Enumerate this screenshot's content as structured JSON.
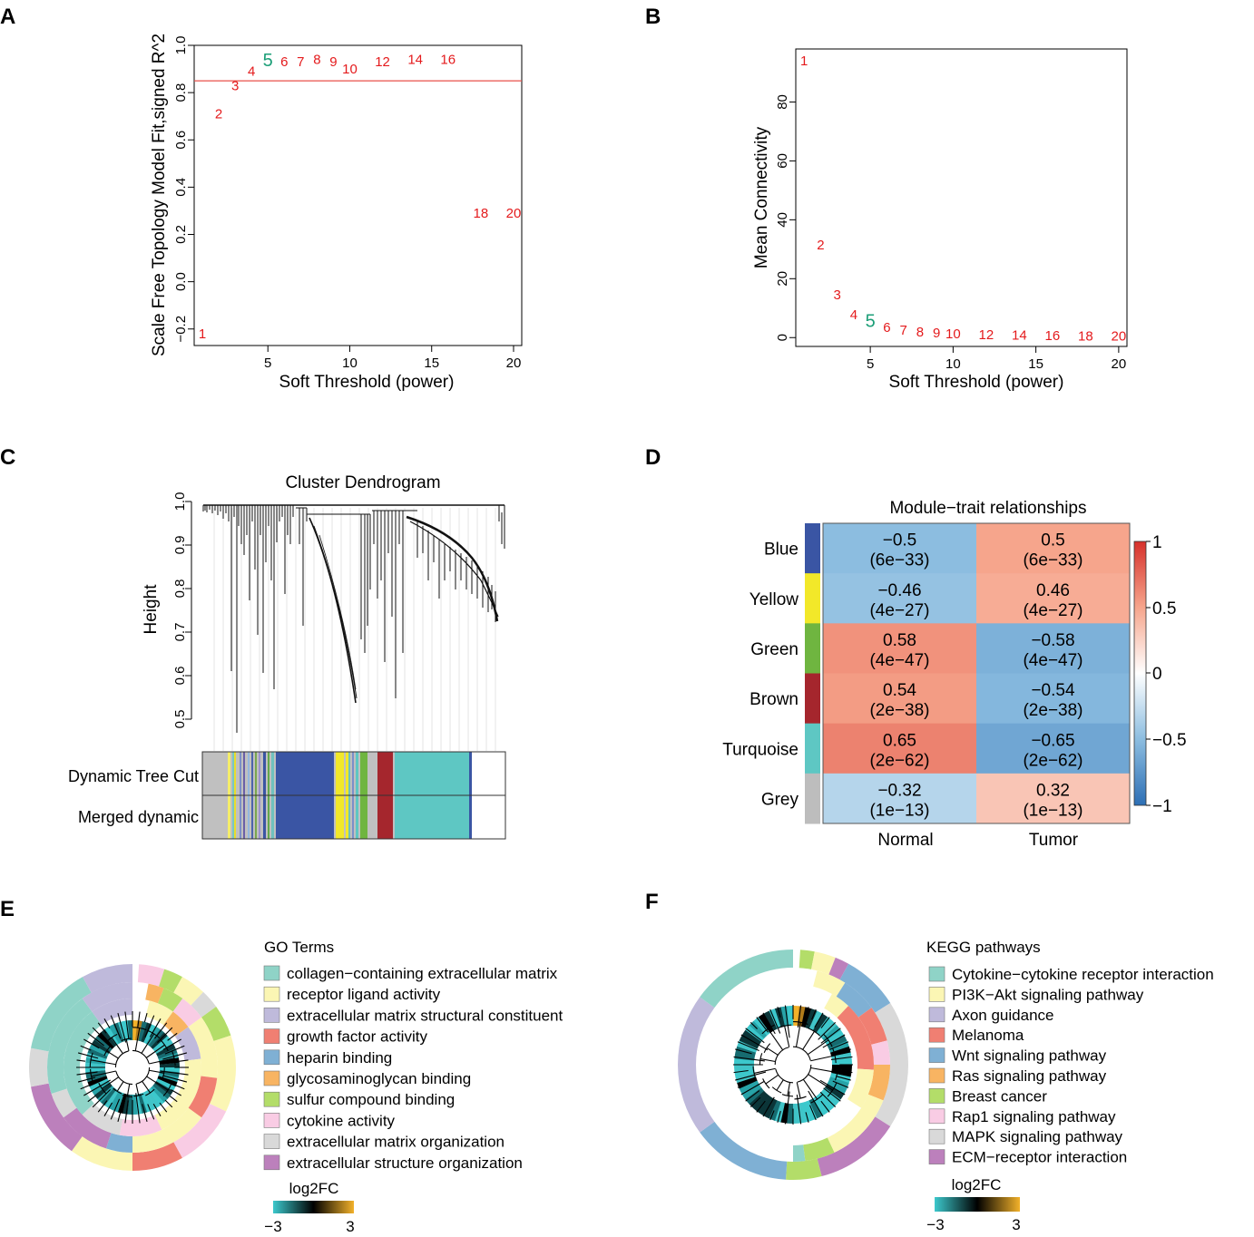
{
  "colors": {
    "point_red": "#e41a1c",
    "point_green": "#1b9e77",
    "cut_line": "#e8504a",
    "blue_module": "#3a55a4",
    "yellow_module": "#f2e829",
    "green_module": "#6fb540",
    "brown_module": "#a5262d",
    "turquoise_module": "#5ec7c3",
    "grey_module": "#bdbdbd"
  },
  "panels": {
    "A": {
      "letter": "A"
    },
    "B": {
      "letter": "B"
    },
    "C": {
      "letter": "C",
      "title": "Cluster Dendrogram",
      "ylabel": "Height",
      "yticks": [
        "0.5",
        "0.6",
        "0.7",
        "0.8",
        "0.9",
        "1.0"
      ],
      "row1": "Dynamic Tree Cut",
      "row2": "Merged dynamic"
    },
    "D": {
      "letter": "D",
      "title": "Module−trait relationships",
      "scale_ticks": [
        "1",
        "0.5",
        "0",
        "−0.5",
        "−1"
      ]
    },
    "E": {
      "letter": "E",
      "legend_title": "GO Terms",
      "scale_title": "log2FC",
      "scale_min": "−3",
      "scale_max": "3",
      "items": [
        {
          "label": "collagen−containing extracellular matrix",
          "color": "#8fd3c7"
        },
        {
          "label": "receptor ligand activity",
          "color": "#fbf6b4"
        },
        {
          "label": "extracellular matrix structural constituent",
          "color": "#bfbadb"
        },
        {
          "label": "growth factor activity",
          "color": "#f07f72"
        },
        {
          "label": "heparin binding",
          "color": "#7fb0d4"
        },
        {
          "label": "glycosaminoglycan binding",
          "color": "#f8b462"
        },
        {
          "label": "sulfur compound binding",
          "color": "#b3dd69"
        },
        {
          "label": "cytokine activity",
          "color": "#f9cce4"
        },
        {
          "label": "extracellular matrix organization",
          "color": "#d9d9d9"
        },
        {
          "label": "extracellular structure organization",
          "color": "#bc80bc"
        }
      ]
    },
    "F": {
      "letter": "F",
      "legend_title": "KEGG pathways",
      "scale_title": "log2FC",
      "scale_min": "−3",
      "scale_max": "3",
      "items": [
        {
          "label": "Cytokine−cytokine receptor interaction",
          "color": "#8fd3c7"
        },
        {
          "label": "PI3K−Akt signaling pathway",
          "color": "#fbf6b4"
        },
        {
          "label": "Axon guidance",
          "color": "#bfbadb"
        },
        {
          "label": "Melanoma",
          "color": "#f07f72"
        },
        {
          "label": "Wnt signaling pathway",
          "color": "#7fb0d4"
        },
        {
          "label": "Ras signaling pathway",
          "color": "#f8b462"
        },
        {
          "label": "Breast cancer",
          "color": "#b3dd69"
        },
        {
          "label": "Rap1 signaling pathway",
          "color": "#f9cce4"
        },
        {
          "label": "MAPK signaling pathway",
          "color": "#d9d9d9"
        },
        {
          "label": "ECM−receptor interaction",
          "color": "#bc80bc"
        }
      ]
    }
  },
  "chart_data": [
    {
      "panel": "A",
      "type": "scatter",
      "title": "",
      "xlabel": "Soft Threshold (power)",
      "ylabel": "Scale Free Topology Model Fit,signed R^2",
      "xlim": [
        0.5,
        20.5
      ],
      "ylim": [
        -0.27,
        1.0
      ],
      "xticks": [
        5,
        10,
        15,
        20
      ],
      "yticks": [
        -0.2,
        0.0,
        0.2,
        0.4,
        0.6,
        0.8,
        1.0
      ],
      "ytick_labels": [
        "−0.2",
        "0.0",
        "0.2",
        "0.4",
        "0.6",
        "0.8",
        "1.0"
      ],
      "cut_line_y": 0.85,
      "highlight": 5,
      "points": [
        {
          "label": "1",
          "x": 1,
          "y": -0.22
        },
        {
          "label": "2",
          "x": 2,
          "y": 0.71
        },
        {
          "label": "3",
          "x": 3,
          "y": 0.83
        },
        {
          "label": "4",
          "x": 4,
          "y": 0.89
        },
        {
          "label": "5",
          "x": 5,
          "y": 0.93
        },
        {
          "label": "6",
          "x": 6,
          "y": 0.93
        },
        {
          "label": "7",
          "x": 7,
          "y": 0.93
        },
        {
          "label": "8",
          "x": 8,
          "y": 0.94
        },
        {
          "label": "9",
          "x": 9,
          "y": 0.93
        },
        {
          "label": "10",
          "x": 10,
          "y": 0.9
        },
        {
          "label": "12",
          "x": 12,
          "y": 0.93
        },
        {
          "label": "14",
          "x": 14,
          "y": 0.94
        },
        {
          "label": "16",
          "x": 16,
          "y": 0.94
        },
        {
          "label": "18",
          "x": 18,
          "y": 0.29
        },
        {
          "label": "20",
          "x": 20,
          "y": 0.29
        }
      ]
    },
    {
      "panel": "B",
      "type": "scatter",
      "title": "",
      "xlabel": "Soft Threshold (power)",
      "ylabel": "Mean Connectivity",
      "xlim": [
        0.5,
        20.5
      ],
      "ylim": [
        -3,
        98
      ],
      "xticks": [
        5,
        10,
        15,
        20
      ],
      "yticks": [
        0,
        20,
        40,
        60,
        80
      ],
      "ytick_labels": [
        "0",
        "20",
        "40",
        "60",
        "80"
      ],
      "highlight": 5,
      "points": [
        {
          "label": "1",
          "x": 1,
          "y": 94
        },
        {
          "label": "2",
          "x": 2,
          "y": 31.5
        },
        {
          "label": "3",
          "x": 3,
          "y": 14.5
        },
        {
          "label": "4",
          "x": 4,
          "y": 7.8
        },
        {
          "label": "5",
          "x": 5,
          "y": 5.2
        },
        {
          "label": "6",
          "x": 6,
          "y": 3.5
        },
        {
          "label": "7",
          "x": 7,
          "y": 2.5
        },
        {
          "label": "8",
          "x": 8,
          "y": 1.9
        },
        {
          "label": "9",
          "x": 9,
          "y": 1.6
        },
        {
          "label": "10",
          "x": 10,
          "y": 1.3
        },
        {
          "label": "12",
          "x": 12,
          "y": 1.0
        },
        {
          "label": "14",
          "x": 14,
          "y": 0.8
        },
        {
          "label": "16",
          "x": 16,
          "y": 0.7
        },
        {
          "label": "18",
          "x": 18,
          "y": 0.6
        },
        {
          "label": "20",
          "x": 20,
          "y": 0.5
        }
      ]
    },
    {
      "panel": "D",
      "type": "heatmap",
      "title": "Module−trait relationships",
      "columns": [
        "Normal",
        "Tumor"
      ],
      "colorbar_range": [
        -1,
        1
      ],
      "rows": [
        {
          "name": "Blue",
          "values": [
            -0.5,
            0.5
          ],
          "cells": [
            [
              "−0.5",
              "(6e−33)"
            ],
            [
              "0.5",
              "(6e−33)"
            ]
          ]
        },
        {
          "name": "Yellow",
          "values": [
            -0.46,
            0.46
          ],
          "cells": [
            [
              "−0.46",
              "(4e−27)"
            ],
            [
              "0.46",
              "(4e−27)"
            ]
          ]
        },
        {
          "name": "Green",
          "values": [
            0.58,
            -0.58
          ],
          "cells": [
            [
              "0.58",
              "(4e−47)"
            ],
            [
              "−0.58",
              "(4e−47)"
            ]
          ]
        },
        {
          "name": "Brown",
          "values": [
            0.54,
            -0.54
          ],
          "cells": [
            [
              "0.54",
              "(2e−38)"
            ],
            [
              "−0.54",
              "(2e−38)"
            ]
          ]
        },
        {
          "name": "Turquoise",
          "values": [
            0.65,
            -0.65
          ],
          "cells": [
            [
              "0.65",
              "(2e−62)"
            ],
            [
              "−0.65",
              "(2e−62)"
            ]
          ]
        },
        {
          "name": "Grey",
          "values": [
            -0.32,
            0.32
          ],
          "cells": [
            [
              "−0.32",
              "(1e−13)"
            ],
            [
              "0.32",
              "(1e−13)"
            ]
          ]
        }
      ]
    }
  ]
}
